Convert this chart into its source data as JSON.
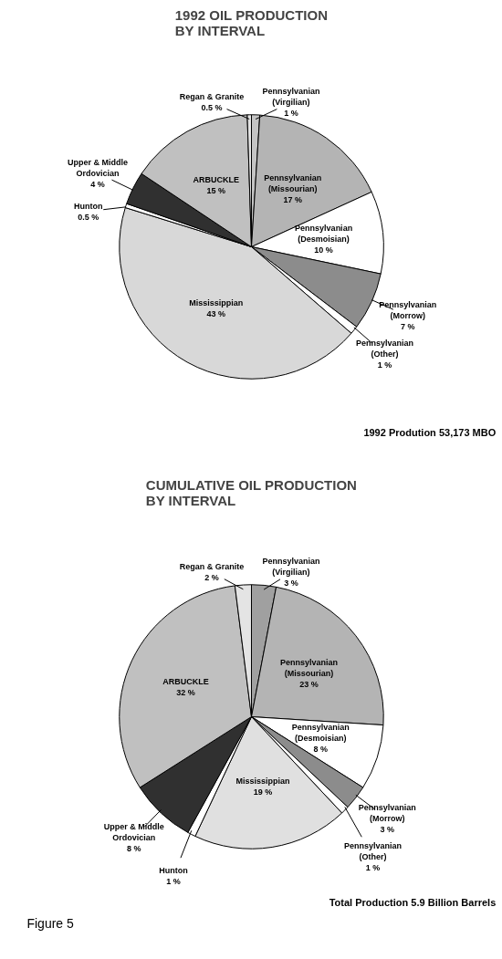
{
  "chart_data": [
    {
      "type": "pie",
      "title": "1992 OIL PRODUCTION\nBY INTERVAL",
      "categories": [
        "Pennsylvanian\n(Virgilian)",
        "Pennsylvanian\n(Missourian)",
        "Pennsylvanian\n(Desmoisian)",
        "Pennsylvanian\n(Morrow)",
        "Pennsylvanian\n(Other)",
        "Mississippian",
        "Hunton",
        "Upper & Middle\nOrdovician",
        "ARBUCKLE",
        "Regan & Granite"
      ],
      "values": [
        1,
        17,
        10,
        7,
        1,
        43,
        0.5,
        4,
        15,
        0.5
      ],
      "value_labels": [
        "1 %",
        "17 %",
        "10 %",
        "7 %",
        "1 %",
        "43 %",
        "0.5 %",
        "4 %",
        "15 %",
        "0.5 %"
      ],
      "colors": [
        "#c4c4c4",
        "#b4b4b4",
        "#ffffff",
        "#8c8c8c",
        "#ffffff",
        "#d8d8d8",
        "#ffffff",
        "#303030",
        "#c0c0c0",
        "#e4e4e4"
      ],
      "annotations": [
        "1992 Prodution 53,173 MBO"
      ]
    },
    {
      "type": "pie",
      "title": "CUMULATIVE OIL PRODUCTION\nBY INTERVAL",
      "categories": [
        "Pennsylvanian\n(Virgilian)",
        "Pennsylvanian\n(Missourian)",
        "Pennsylvanian\n(Desmoisian)",
        "Pennsylvanian\n(Morrow)",
        "Pennsylvanian\n(Other)",
        "Mississippian",
        "Hunton",
        "Upper & Middle\nOrdovician",
        "ARBUCKLE",
        "Regan & Granite"
      ],
      "values": [
        3,
        23,
        8,
        3,
        1,
        19,
        1,
        8,
        32,
        2
      ],
      "value_labels": [
        "3 %",
        "23 %",
        "8 %",
        "3 %",
        "1 %",
        "19 %",
        "1 %",
        "8 %",
        "32 %",
        "2 %"
      ],
      "colors": [
        "#a0a0a0",
        "#b4b4b4",
        "#ffffff",
        "#8c8c8c",
        "#ffffff",
        "#e0e0e0",
        "#ffffff",
        "#303030",
        "#c0c0c0",
        "#e4e4e4"
      ],
      "annotations": [
        "Total Production 5.9 Billion Barrels",
        "Figure 5"
      ]
    }
  ]
}
